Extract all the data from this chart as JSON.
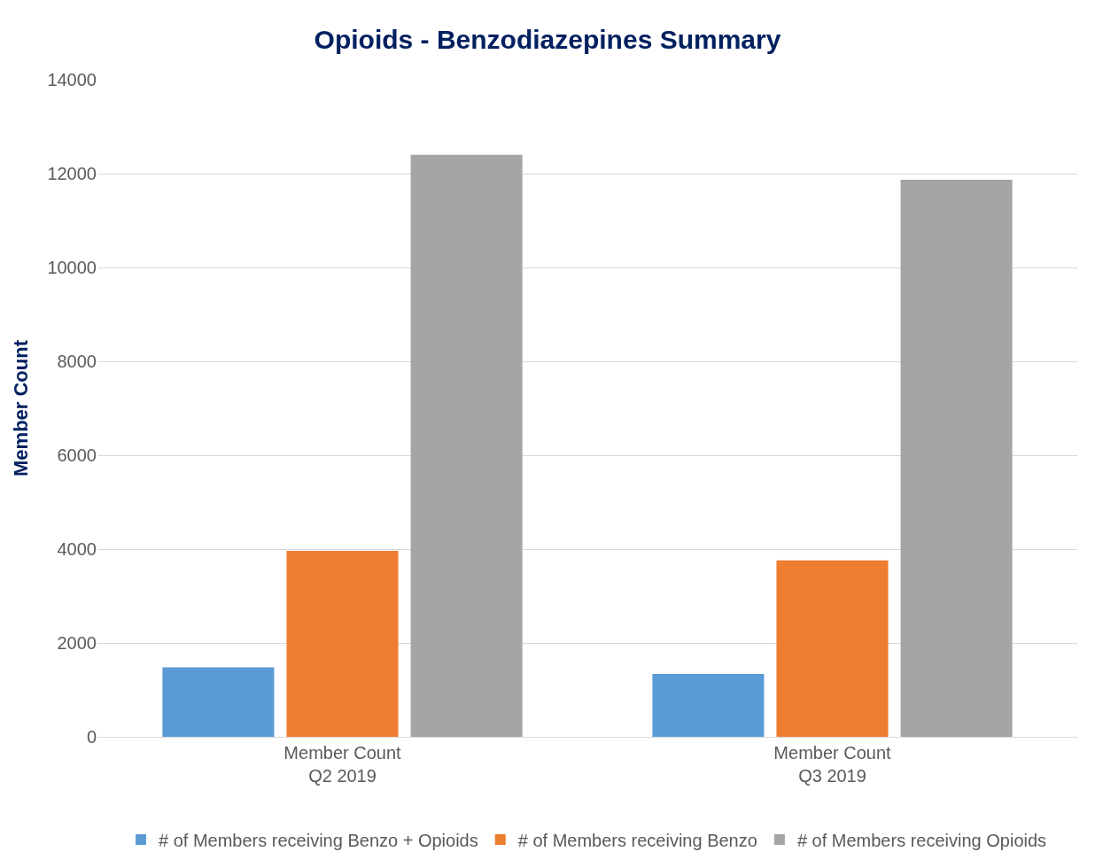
{
  "chart_data": {
    "type": "bar",
    "title": "Opioids - Benzodiazepines Summary",
    "ylabel": "Member Count",
    "categories": [
      "Member Count\nQ2 2019",
      "Member Count\nQ3 2019"
    ],
    "series": [
      {
        "name": "# of Members receiving Benzo + Opioids",
        "color": "#5b9bd5",
        "values": [
          1480,
          1340
        ]
      },
      {
        "name": "# of Members receiving Benzo",
        "color": "#ed7d31",
        "values": [
          3960,
          3760
        ]
      },
      {
        "name": "# of Members receiving Opioids",
        "color": "#a5a5a5",
        "values": [
          12400,
          11870
        ]
      }
    ],
    "ylim": [
      0,
      14000
    ],
    "yticks": [
      0,
      2000,
      4000,
      6000,
      8000,
      10000,
      12000,
      14000
    ],
    "grid": "y",
    "legend": "bottom"
  }
}
